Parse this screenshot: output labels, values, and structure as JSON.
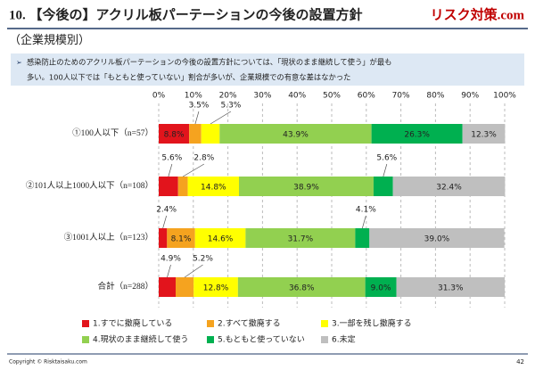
{
  "header": {
    "title": "10. 【今後の】アクリル板パーテーションの今後の設置方針",
    "logo": "リスク対策.com",
    "subtitle": "（企業規模別）",
    "summary": [
      "感染防止のためのアクリル板パーテーションの今後の設置方針については、「現状のまま継続して使う」が最も",
      "多い。100人以下では「もともと使っていない」割合が多いが、企業規模での有意な差はなかった"
    ]
  },
  "footer": {
    "copyright": "Copyright © Risktaisaku.com",
    "page": "42"
  },
  "chart_data": {
    "type": "stacked-bar-horizontal",
    "categories": [
      "①100人以下（n=57）",
      "②101人以上1000人以下（n=108）",
      "③1001人以上（n=123）",
      "合計（n=288）"
    ],
    "series": [
      {
        "name": "1.すでに撤廃している",
        "color": "#e2141c",
        "values": [
          8.8,
          5.6,
          2.4,
          4.9
        ],
        "value_labels": [
          "8.8%",
          "5.6%",
          "2.4%",
          "4.9%"
        ]
      },
      {
        "name": "2.すべて撤廃する",
        "color": "#f5a31f",
        "values": [
          3.5,
          2.8,
          8.1,
          5.2
        ],
        "value_labels": [
          "3.5%",
          "2.8%",
          "8.1%",
          "5.2%"
        ]
      },
      {
        "name": "3.一部を残し撤廃する",
        "color": "#ffff00",
        "values": [
          5.3,
          14.8,
          14.6,
          12.8
        ],
        "value_labels": [
          "5.3%",
          "14.8%",
          "14.6%",
          "12.8%"
        ]
      },
      {
        "name": "4.現状のまま継続して使う",
        "color": "#92d050",
        "values": [
          43.9,
          38.9,
          31.7,
          36.8
        ],
        "value_labels": [
          "43.9%",
          "38.9%",
          "31.7%",
          "36.8%"
        ]
      },
      {
        "name": "5.もともと使っていない",
        "color": "#00b050",
        "values": [
          26.3,
          5.6,
          4.1,
          9.0
        ],
        "value_labels": [
          "26.3%",
          "5.6%",
          "4.1%",
          "9.0%"
        ]
      },
      {
        "name": "6.未定",
        "color": "#bfbfbf",
        "values": [
          12.3,
          32.4,
          39.0,
          31.3
        ],
        "value_labels": [
          "12.3%",
          "32.4%",
          "39.0%",
          "31.3%"
        ]
      }
    ],
    "xlim": [
      0,
      100
    ],
    "xticks": [
      {
        "value": 0,
        "label": "0%"
      },
      {
        "value": 10,
        "label": "10%"
      },
      {
        "value": 20,
        "label": "20%"
      },
      {
        "value": 30,
        "label": "30%"
      },
      {
        "value": 40,
        "label": "40%"
      },
      {
        "value": 50,
        "label": "50%"
      },
      {
        "value": 60,
        "label": "60%"
      },
      {
        "value": 70,
        "label": "70%"
      },
      {
        "value": 80,
        "label": "80%"
      },
      {
        "value": 90,
        "label": "90%"
      },
      {
        "value": 100,
        "label": "100%"
      }
    ],
    "grid": true
  }
}
